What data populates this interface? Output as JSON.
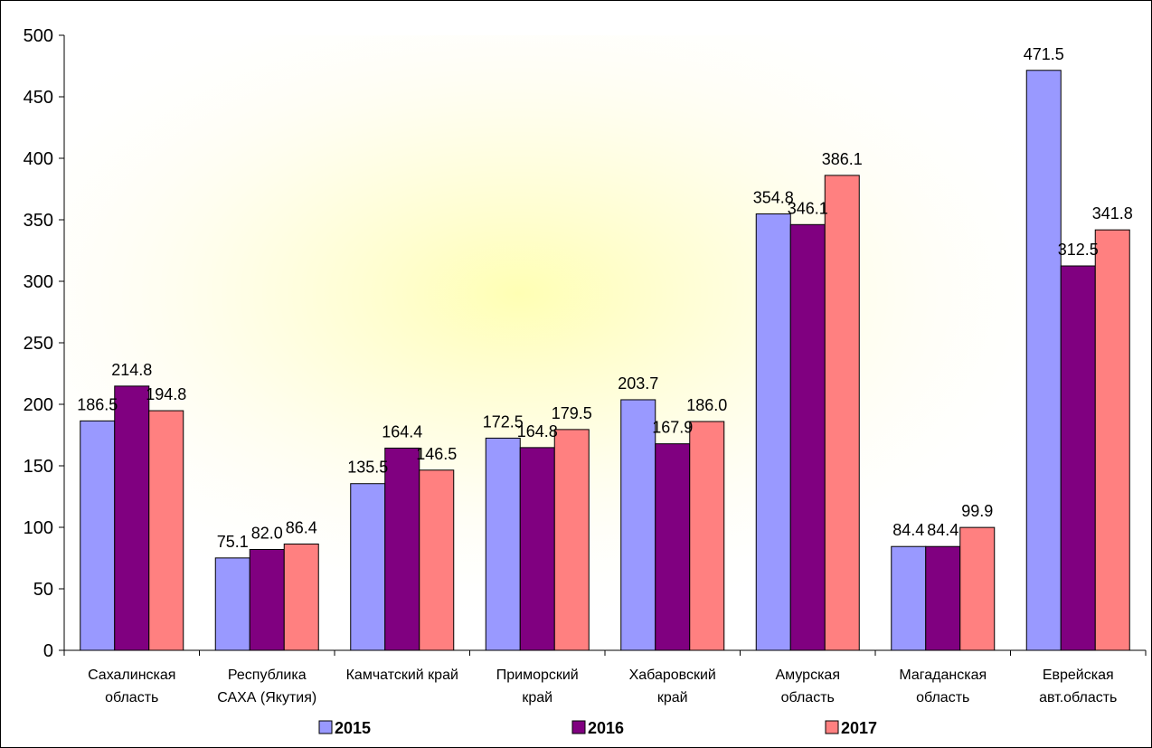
{
  "chart_data": {
    "type": "bar",
    "categories": [
      [
        "Сахалинская",
        "область"
      ],
      [
        "Республика",
        "САХА (Якутия)"
      ],
      [
        "Камчатский край"
      ],
      [
        "Приморский",
        "край"
      ],
      [
        "Хабаровский",
        "край"
      ],
      [
        "Амурская",
        "область"
      ],
      [
        "Магаданская",
        "область"
      ],
      [
        "Еврейская",
        "авт.область"
      ]
    ],
    "series": [
      {
        "name": "2015",
        "color": "#9999ff",
        "values": [
          186.5,
          75.1,
          135.5,
          172.5,
          203.7,
          354.8,
          84.4,
          471.5
        ]
      },
      {
        "name": "2016",
        "color": "#800080",
        "values": [
          214.8,
          82.0,
          164.4,
          164.8,
          167.9,
          346.1,
          84.4,
          312.5
        ]
      },
      {
        "name": "2017",
        "color": "#ff8080",
        "values": [
          194.8,
          86.4,
          146.5,
          179.5,
          186.0,
          386.1,
          99.9,
          341.8
        ]
      }
    ],
    "value_labels": [
      [
        "186.5",
        "75.1",
        "135.5",
        "172.5",
        "203.7",
        "354.8",
        "84.4",
        "471.5"
      ],
      [
        "214.8",
        "82.0",
        "164.4",
        "164.8",
        "167.9",
        "346.1",
        "84.4",
        "312.5"
      ],
      [
        "194.8",
        "86.4",
        "146.5",
        "179.5",
        "186.0",
        "386.1",
        "99.9",
        "341.8"
      ]
    ],
    "ylim": [
      0,
      500
    ],
    "yticks": [
      "0",
      "50",
      "100",
      "150",
      "200",
      "250",
      "300",
      "350",
      "400",
      "450",
      "500"
    ],
    "title": "",
    "xlabel": "",
    "ylabel": "",
    "grid": false,
    "legend_position": "bottom",
    "background": "radial yellow glow"
  }
}
